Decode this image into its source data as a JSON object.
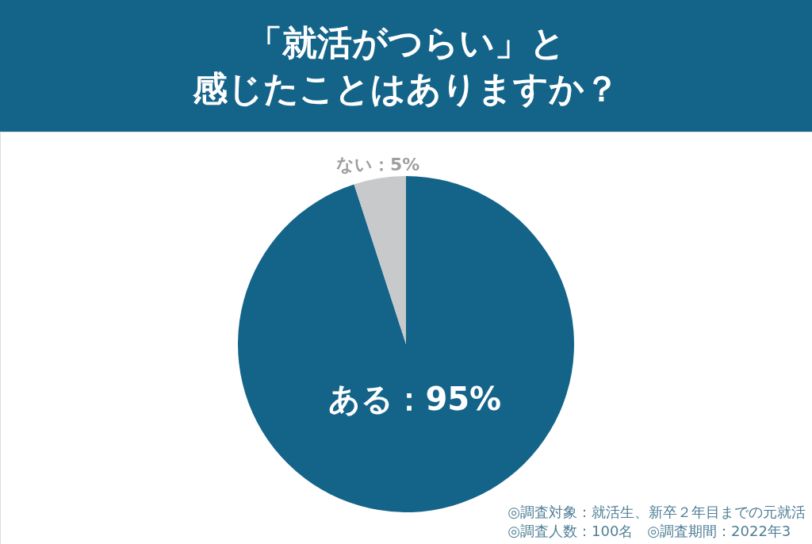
{
  "chart_data": {
    "type": "pie",
    "title": "「就活がつらい」と",
    "subtitle": "感じたことはありますか？",
    "categories": [
      "ある",
      "ない"
    ],
    "values": [
      95,
      5
    ],
    "colors": [
      "#14648a",
      "#c8c9cb"
    ],
    "value_labels": [
      "95%",
      "5%"
    ],
    "annotations": [
      "◎調査対象：就活生、新卒２年目までの元就活",
      "◎調査人数：100名　◎調査期間：2022年3"
    ]
  }
}
